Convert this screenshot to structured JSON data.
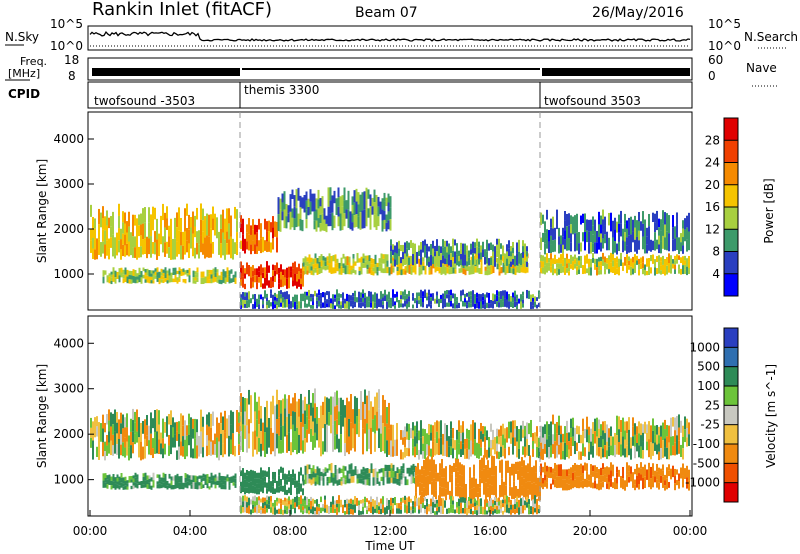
{
  "header": {
    "station": "Rankin Inlet (fitACF)",
    "beam": "Beam 07",
    "date": "26/May/2016"
  },
  "noise_panel": {
    "left_label": "N.Sky",
    "right_label": "N.Search",
    "tick_top": "10^5",
    "tick_bottom": "10^0",
    "right_tick_top": "10^5",
    "right_tick_bottom": "10^0"
  },
  "freq_panel": {
    "left_label_line1": "Freq.",
    "left_label_line2": "[MHz]",
    "left_tick_top": "18",
    "left_tick_bottom": "8",
    "right_tick_top": "60",
    "right_tick_bottom": "0",
    "right_label": "Nave"
  },
  "cpid_panel": {
    "label": "CPID",
    "segments": [
      {
        "name": "twofsound -3503",
        "start_hour": 0
      },
      {
        "name": "themis 3300",
        "start_hour": 6
      },
      {
        "name": "twofsound 3503",
        "start_hour": 18
      }
    ]
  },
  "power_panel": {
    "ylabel": "Slant Range [km]",
    "colorbar_label": "Power [dB]",
    "colorbar_ticks": [
      "28",
      "24",
      "20",
      "16",
      "12",
      "8",
      "4"
    ],
    "colorbar_colors": [
      "#e00000",
      "#f04000",
      "#f58a00",
      "#f5c400",
      "#a8d040",
      "#3d9a6a",
      "#2a3fc0",
      "#0000ff"
    ]
  },
  "velocity_panel": {
    "ylabel": "Slant Range [km]",
    "colorbar_label": "Velocity [m s^-1]",
    "colorbar_ticks": [
      "1000",
      "500",
      "100",
      "25",
      "-25",
      "-100",
      "-500",
      "-1000"
    ],
    "colorbar_colors": [
      "#2a3fc0",
      "#2f6fb0",
      "#2e8b57",
      "#6cc43a",
      "#c8c8c0",
      "#f0c040",
      "#f08a10",
      "#f05000",
      "#e00000"
    ]
  },
  "yaxis_ticks": [
    "4000",
    "3000",
    "2000",
    "1000"
  ],
  "xaxis": {
    "label": "Time UT",
    "ticks": [
      "00:00",
      "04:00",
      "08:00",
      "12:00",
      "16:00",
      "20:00",
      "00:00"
    ]
  },
  "chart_data": {
    "type": "heatmap",
    "title": "Rankin Inlet (fitACF)",
    "subtitle": "Beam 07",
    "date": "26/May/2016",
    "xlabel": "Time UT",
    "ylabel": "Slant Range [km]",
    "xlim": [
      0,
      24
    ],
    "ylim": [
      200,
      4600
    ],
    "x_ticks": [
      "00:00",
      "04:00",
      "08:00",
      "12:00",
      "16:00",
      "20:00",
      "00:00"
    ],
    "mode_changes_hours": [
      6,
      18
    ],
    "power_bands": [
      {
        "t0": 0.0,
        "t1": 6.0,
        "r0": 1400,
        "r1": 2400,
        "db": 16
      },
      {
        "t0": 0.5,
        "t1": 5.8,
        "r0": 800,
        "r1": 1100,
        "db": 12
      },
      {
        "t0": 6.0,
        "t1": 7.5,
        "r0": 1500,
        "r1": 2200,
        "db": 22
      },
      {
        "t0": 6.0,
        "t1": 8.5,
        "r0": 700,
        "r1": 1200,
        "db": 24
      },
      {
        "t0": 7.5,
        "t1": 12.0,
        "r0": 2000,
        "r1": 2800,
        "db": 8
      },
      {
        "t0": 8.5,
        "t1": 17.5,
        "r0": 1000,
        "r1": 1400,
        "db": 14
      },
      {
        "t0": 12.0,
        "t1": 17.5,
        "r0": 1200,
        "r1": 1700,
        "db": 8
      },
      {
        "t0": 18.0,
        "t1": 24.0,
        "r0": 1000,
        "r1": 1400,
        "db": 14
      },
      {
        "t0": 18.0,
        "t1": 24.0,
        "r0": 1500,
        "r1": 2300,
        "db": 6
      },
      {
        "t0": 6.0,
        "t1": 18.0,
        "r0": 250,
        "r1": 600,
        "db": 6
      }
    ],
    "velocity_bands": [
      {
        "t0": 0.0,
        "t1": 6.0,
        "r0": 1500,
        "r1": 2400,
        "v": 0
      },
      {
        "t0": 0.5,
        "t1": 5.8,
        "r0": 800,
        "r1": 1100,
        "v": 200
      },
      {
        "t0": 6.0,
        "t1": 8.5,
        "r0": 700,
        "r1": 1200,
        "v": 300
      },
      {
        "t0": 6.0,
        "t1": 12.0,
        "r0": 1600,
        "r1": 2800,
        "v": 0
      },
      {
        "t0": 8.5,
        "t1": 13.0,
        "r0": 900,
        "r1": 1300,
        "v": 150
      },
      {
        "t0": 13.0,
        "t1": 18.0,
        "r0": 600,
        "r1": 1400,
        "v": -300
      },
      {
        "t0": 12.0,
        "t1": 18.0,
        "r0": 1500,
        "r1": 2200,
        "v": 0
      },
      {
        "t0": 18.0,
        "t1": 24.0,
        "r0": 800,
        "r1": 1300,
        "v": -400
      },
      {
        "t0": 18.0,
        "t1": 24.0,
        "r0": 1500,
        "r1": 2300,
        "v": 0
      },
      {
        "t0": 6.0,
        "t1": 18.0,
        "r0": 250,
        "r1": 600,
        "v": 0
      }
    ]
  }
}
